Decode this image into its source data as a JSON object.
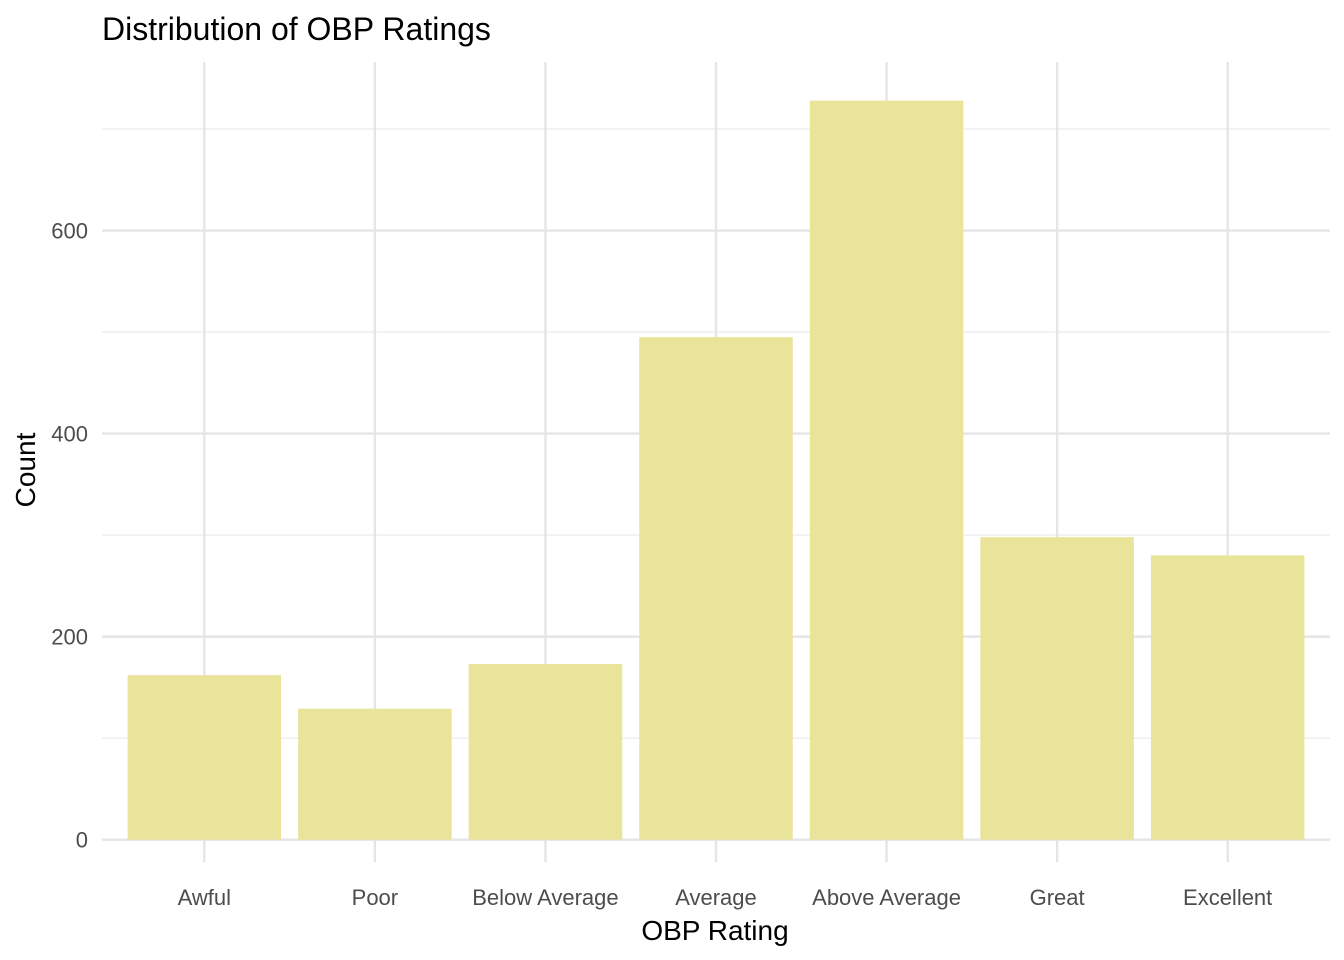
{
  "chart_data": {
    "type": "bar",
    "title": "Distribution of OBP Ratings",
    "xlabel": "OBP Rating",
    "ylabel": "Count",
    "categories": [
      "Awful",
      "Poor",
      "Below Average",
      "Average",
      "Above Average",
      "Great",
      "Excellent"
    ],
    "values": [
      162,
      129,
      173,
      495,
      728,
      298,
      280
    ],
    "ylim": [
      -22,
      766
    ],
    "yticks": [
      0,
      200,
      400,
      600
    ],
    "grid": true,
    "bar_color": "#e9e499",
    "grid_color": "#e5e5e5"
  }
}
